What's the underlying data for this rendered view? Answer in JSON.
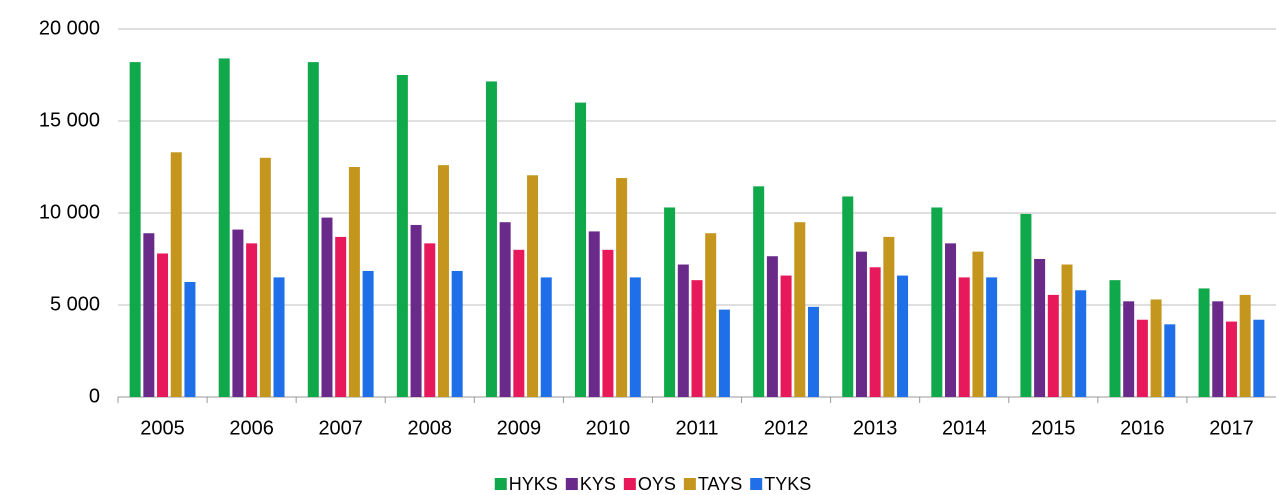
{
  "chart_data": {
    "type": "bar",
    "categories": [
      "2005",
      "2006",
      "2007",
      "2008",
      "2009",
      "2010",
      "2011",
      "2012",
      "2013",
      "2014",
      "2015",
      "2016",
      "2017"
    ],
    "series": [
      {
        "name": "HYKS",
        "color": "#0fa84a",
        "values": [
          18200,
          18400,
          18200,
          17500,
          17150,
          16000,
          10300,
          11450,
          10900,
          10300,
          9950,
          6350,
          5900
        ]
      },
      {
        "name": "KYS",
        "color": "#6a2a8a",
        "values": [
          8900,
          9100,
          9750,
          9350,
          9500,
          9000,
          7200,
          7650,
          7900,
          8350,
          7500,
          5200,
          5200
        ]
      },
      {
        "name": "OYS",
        "color": "#e8195a",
        "values": [
          7800,
          8350,
          8700,
          8350,
          8000,
          8000,
          6350,
          6600,
          7050,
          6500,
          5550,
          4200,
          4100
        ]
      },
      {
        "name": "TAYS",
        "color": "#c4961e",
        "values": [
          13300,
          13000,
          12500,
          12600,
          12050,
          11900,
          8900,
          9500,
          8700,
          7900,
          7200,
          5300,
          5550
        ]
      },
      {
        "name": "TYKS",
        "color": "#1e6fe8",
        "values": [
          6250,
          6500,
          6850,
          6850,
          6500,
          6500,
          4750,
          4900,
          6600,
          6500,
          5800,
          3950,
          4200
        ]
      }
    ],
    "ylim": [
      0,
      20000
    ],
    "yticks": [
      0,
      {
        "value": 5000,
        "label": "5 000"
      },
      {
        "value": 10000,
        "label": "10 000"
      },
      {
        "value": 15000,
        "label": "15 000"
      },
      {
        "value": 20000,
        "label": "20 000"
      }
    ],
    "grid": true,
    "legend": "bottom"
  }
}
